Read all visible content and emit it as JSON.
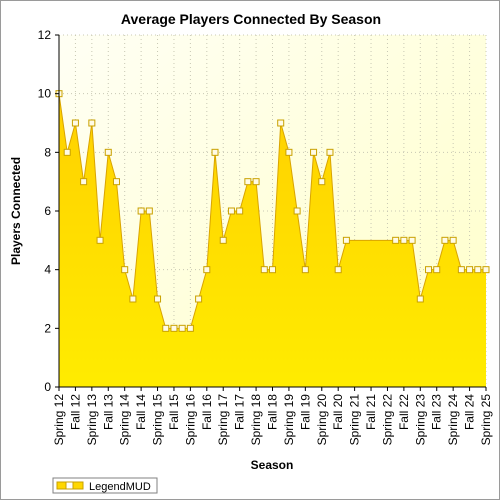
{
  "chart_data": {
    "type": "area",
    "title": "Average Players Connected By Season",
    "xlabel": "Season",
    "ylabel": "Players Connected",
    "ylim": [
      0,
      12
    ],
    "yticks": [
      0,
      2,
      4,
      6,
      8,
      10,
      12
    ],
    "grid": true,
    "legend_position": "bottom-left",
    "x_tick_labels": [
      "Spring 12",
      "Fall 12",
      "Spring 13",
      "Fall 13",
      "Spring 14",
      "Fall 14",
      "Spring 15",
      "Fall 15",
      "Spring 16",
      "Fall 16",
      "Spring 17",
      "Fall 17",
      "Spring 18",
      "Fall 18",
      "Spring 19",
      "Fall 19",
      "Spring 20",
      "Fall 20",
      "Spring 21",
      "Fall 21",
      "Spring 22",
      "Fall 22",
      "Spring 23",
      "Fall 23",
      "Spring 24",
      "Fall 24",
      "Spring 25"
    ],
    "series": [
      {
        "name": "LegendMUD",
        "color": "#ffd700",
        "x": [
          0,
          0.5,
          1,
          1.5,
          2,
          2.5,
          3,
          3.5,
          4,
          4.5,
          5,
          5.5,
          6,
          6.5,
          7,
          7.5,
          8,
          8.5,
          9,
          9.5,
          10,
          10.5,
          11,
          11.5,
          12,
          12.5,
          13,
          13.5,
          14,
          14.5,
          15,
          15.5,
          16,
          16.5,
          17,
          17.5,
          18,
          18.5,
          19,
          19.5,
          20,
          20.5,
          21,
          21.5,
          22,
          22.5,
          23,
          23.5,
          24,
          24.5,
          25,
          25.5,
          26
        ],
        "values": [
          10,
          8,
          9,
          7,
          9,
          5,
          8,
          7,
          4,
          3,
          6,
          6,
          3,
          2,
          2,
          2,
          2,
          3,
          4,
          8,
          5,
          6,
          6,
          7,
          7,
          4,
          4,
          9,
          8,
          6,
          4,
          8,
          7,
          8,
          4,
          5,
          null,
          null,
          null,
          null,
          null,
          5,
          5,
          5,
          3,
          4,
          4,
          5,
          5,
          4,
          4,
          4,
          4
        ],
        "hidden_marker_x": [
          18,
          18.5,
          19,
          19.5,
          20
        ],
        "hidden_marker_values": [
          5,
          5,
          5,
          5,
          5
        ]
      }
    ]
  }
}
